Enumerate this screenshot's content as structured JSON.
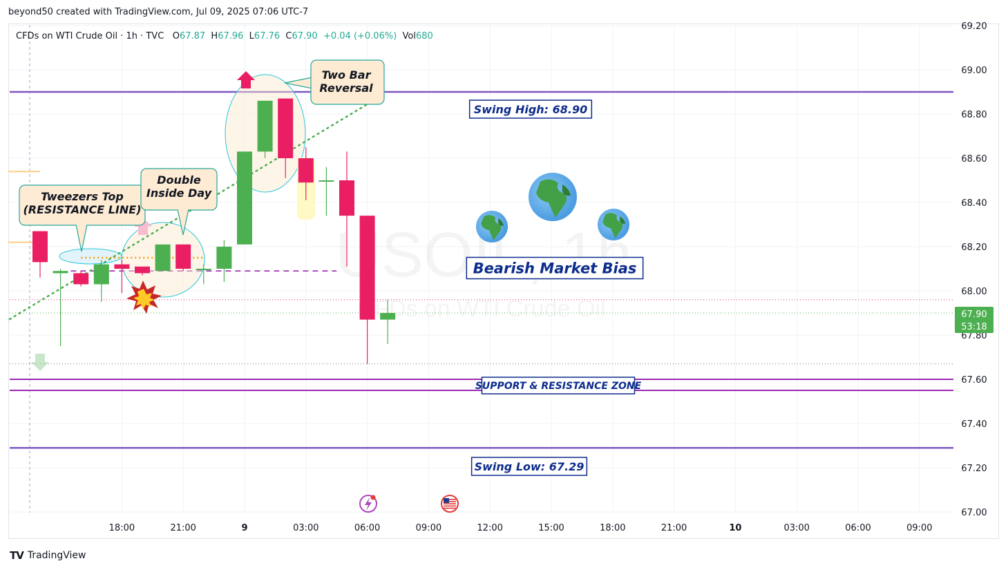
{
  "header": {
    "text": "beyond50 created with TradingView.com, Jul 09, 2025 07:06 UTC-7"
  },
  "legend": {
    "symbol": "CFDs on WTI Crude Oil · 1h · TVC",
    "o_label": "O",
    "o": "67.87",
    "h_label": "H",
    "h": "67.96",
    "l_label": "L",
    "l": "67.76",
    "c_label": "C",
    "c": "67.90",
    "change": "+0.04 (+0.06%)",
    "vol_label": "Vol",
    "vol": "680"
  },
  "watermark": {
    "symbol": "USOIL, 1h",
    "name": "CFDs on WTI Crude Oil"
  },
  "footer": {
    "brand": "TradingView",
    "logo": "TV"
  },
  "colors": {
    "up": "#4caf50",
    "down": "#e91e63",
    "level": "#7e57c2",
    "zone": "#9c27b0",
    "label_border": "#0d2c8c",
    "label_text": "#0d2c8c",
    "price_tag": "#4caf50",
    "dotted_trend": "#4caf50"
  },
  "chart_data": {
    "type": "candlestick",
    "ylim": [
      67.0,
      69.2
    ],
    "y_ticks": [
      "69.20",
      "69.00",
      "68.80",
      "68.60",
      "68.40",
      "68.20",
      "68.00",
      "67.80",
      "67.60",
      "67.40",
      "67.20",
      "67.00"
    ],
    "x_ticks": [
      {
        "label": "18:00",
        "bar": 4,
        "bold": false
      },
      {
        "label": "21:00",
        "bar": 7,
        "bold": false
      },
      {
        "label": "9",
        "bar": 10,
        "bold": true
      },
      {
        "label": "03:00",
        "bar": 13,
        "bold": false
      },
      {
        "label": "06:00",
        "bar": 16,
        "bold": false
      },
      {
        "label": "09:00",
        "bar": 19,
        "bold": false
      },
      {
        "label": "12:00",
        "bar": 22,
        "bold": false
      },
      {
        "label": "15:00",
        "bar": 25,
        "bold": false
      },
      {
        "label": "18:00",
        "bar": 28,
        "bold": false
      },
      {
        "label": "21:00",
        "bar": 31,
        "bold": false
      },
      {
        "label": "10",
        "bar": 34,
        "bold": true
      },
      {
        "label": "03:00",
        "bar": 37,
        "bold": false
      },
      {
        "label": "06:00",
        "bar": 40,
        "bold": false
      },
      {
        "label": "09:00",
        "bar": 43,
        "bold": false
      }
    ],
    "candles": [
      {
        "o": 68.27,
        "h": 68.27,
        "l": 68.06,
        "c": 68.13
      },
      {
        "o": 68.08,
        "h": 68.1,
        "l": 67.75,
        "c": 68.09
      },
      {
        "o": 68.08,
        "h": 68.09,
        "l": 68.02,
        "c": 68.03
      },
      {
        "o": 68.03,
        "h": 68.14,
        "l": 67.95,
        "c": 68.12
      },
      {
        "o": 68.12,
        "h": 68.14,
        "l": 67.99,
        "c": 68.1
      },
      {
        "o": 68.11,
        "h": 68.11,
        "l": 68.07,
        "c": 68.08
      },
      {
        "o": 68.09,
        "h": 68.21,
        "l": 68.09,
        "c": 68.21
      },
      {
        "o": 68.21,
        "h": 68.21,
        "l": 68.09,
        "c": 68.1
      },
      {
        "o": 68.1,
        "h": 68.12,
        "l": 68.03,
        "c": 68.1
      },
      {
        "o": 68.1,
        "h": 68.23,
        "l": 68.04,
        "c": 68.2
      },
      {
        "o": 68.21,
        "h": 68.63,
        "l": 68.21,
        "c": 68.63
      },
      {
        "o": 68.63,
        "h": 68.86,
        "l": 68.6,
        "c": 68.86
      },
      {
        "o": 68.87,
        "h": 68.87,
        "l": 68.51,
        "c": 68.6
      },
      {
        "o": 68.6,
        "h": 68.65,
        "l": 68.41,
        "c": 68.49
      },
      {
        "o": 68.5,
        "h": 68.56,
        "l": 68.34,
        "c": 68.5
      },
      {
        "o": 68.5,
        "h": 68.63,
        "l": 68.11,
        "c": 68.34
      },
      {
        "o": 68.34,
        "h": 68.34,
        "l": 67.67,
        "c": 67.87
      },
      {
        "o": 67.87,
        "h": 67.96,
        "l": 67.76,
        "c": 67.9
      }
    ],
    "levels": [
      {
        "label": "Swing High: 68.90",
        "price": 68.9
      },
      {
        "label": "Swing Low: 67.29",
        "price": 67.29
      }
    ],
    "zone": {
      "label": "SUPPORT & RESISTANCE ZONE",
      "top": 67.6,
      "bottom": 67.55
    },
    "bias_label": "Bearish Market Bias",
    "annotations": [
      {
        "text": [
          "Tweezers Top",
          "(RESISTANCE LINE)"
        ]
      },
      {
        "text": [
          "Double",
          "Inside Day"
        ]
      },
      {
        "text": [
          "Two Bar",
          "Reversal"
        ]
      }
    ],
    "last_price": "67.90",
    "countdown": "53:18"
  }
}
